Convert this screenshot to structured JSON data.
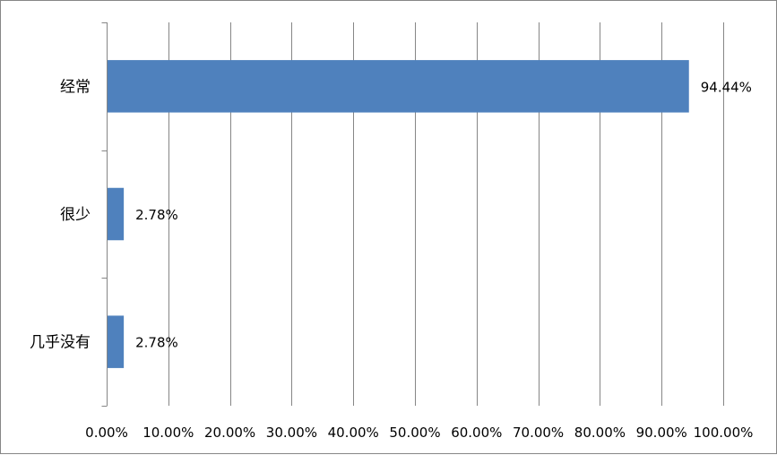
{
  "chart_data": {
    "type": "bar",
    "orientation": "horizontal",
    "categories": [
      "经常",
      "很少",
      "几乎没有"
    ],
    "values": [
      94.44,
      2.78,
      2.78
    ],
    "data_labels": [
      "94.44%",
      "2.78%",
      "2.78%"
    ],
    "x_ticks": [
      "0.00%",
      "10.00%",
      "20.00%",
      "30.00%",
      "40.00%",
      "50.00%",
      "60.00%",
      "70.00%",
      "80.00%",
      "90.00%",
      "100.00%"
    ],
    "xlim": [
      0,
      100
    ],
    "x_unit": "%",
    "grid": "vertical",
    "legend": "none",
    "bar_color": "#4F81BD",
    "gridline_color": "#868686"
  }
}
